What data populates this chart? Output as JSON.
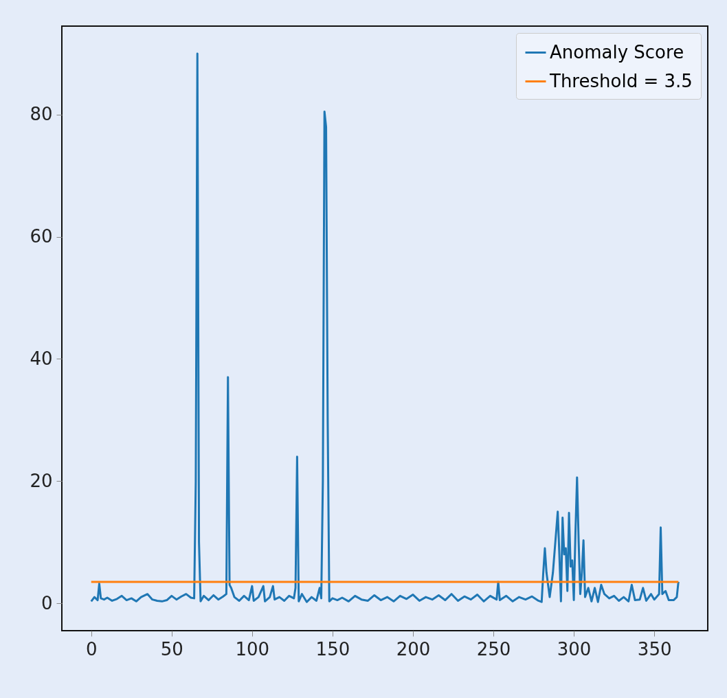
{
  "chart_data": {
    "type": "line",
    "xlim": [
      -18.25,
      383.25
    ],
    "ylim": [
      -4.5,
      94.5
    ],
    "xticks": [
      0,
      50,
      100,
      150,
      200,
      250,
      300,
      350
    ],
    "yticks": [
      0,
      20,
      40,
      60,
      80
    ],
    "grid": false,
    "legend": "top right",
    "series": [
      {
        "name": "Anomaly Score",
        "color": "#1f77b4",
        "x": [
          0,
          2,
          4,
          5,
          6,
          8,
          10,
          13,
          16,
          19,
          22,
          25,
          28,
          31,
          35,
          38,
          41,
          44,
          47,
          50,
          53,
          56,
          59,
          62,
          64,
          65,
          66,
          67,
          68,
          70,
          73,
          76,
          79,
          82,
          84,
          85,
          86,
          87,
          89,
          92,
          95,
          98,
          100,
          101,
          104,
          107,
          108,
          111,
          113,
          114,
          117,
          120,
          123,
          126,
          127,
          128,
          129,
          131,
          134,
          137,
          140,
          142,
          143,
          144,
          145,
          146,
          147,
          148,
          150,
          153,
          156,
          160,
          164,
          168,
          172,
          176,
          180,
          184,
          188,
          192,
          196,
          200,
          204,
          208,
          212,
          216,
          220,
          224,
          228,
          232,
          236,
          240,
          244,
          248,
          252,
          253,
          254,
          258,
          262,
          266,
          270,
          274,
          278,
          280,
          281,
          282,
          283,
          285,
          287,
          290,
          291,
          292,
          293,
          294,
          295,
          296,
          297,
          298,
          299,
          300,
          301,
          302,
          303,
          304,
          305,
          306,
          307,
          309,
          311,
          313,
          315,
          317,
          319,
          322,
          325,
          328,
          331,
          334,
          336,
          338,
          341,
          343,
          345,
          348,
          350,
          353,
          354,
          355,
          357,
          359,
          362,
          364,
          365
        ],
        "values": [
          0.3,
          1.0,
          0.5,
          3.2,
          0.8,
          0.6,
          0.9,
          0.4,
          0.7,
          1.2,
          0.5,
          0.8,
          0.3,
          1.0,
          1.5,
          0.6,
          0.4,
          0.3,
          0.5,
          1.2,
          0.6,
          1.1,
          1.5,
          0.9,
          0.8,
          20,
          90,
          10,
          0.3,
          1.2,
          0.5,
          1.3,
          0.6,
          1.1,
          1.5,
          37,
          3,
          2.5,
          1.0,
          0.4,
          1.2,
          0.5,
          2.8,
          0.4,
          1.0,
          2.8,
          0.3,
          1.0,
          2.8,
          0.6,
          1.0,
          0.4,
          1.2,
          0.8,
          2.5,
          24,
          0.3,
          1.5,
          0.2,
          1.0,
          0.4,
          2.5,
          0.8,
          20,
          80.5,
          78,
          30,
          0.3,
          0.8,
          0.5,
          0.9,
          0.3,
          1.2,
          0.6,
          0.4,
          1.3,
          0.5,
          1.0,
          0.3,
          1.2,
          0.7,
          1.4,
          0.4,
          1.0,
          0.6,
          1.3,
          0.5,
          1.5,
          0.4,
          1.1,
          0.6,
          1.4,
          0.3,
          1.2,
          0.6,
          3.5,
          0.5,
          1.2,
          0.3,
          1.0,
          0.6,
          1.1,
          0.4,
          0.2,
          5,
          9,
          5,
          1,
          5,
          15,
          8,
          0.3,
          14,
          8,
          9,
          2,
          14.8,
          6,
          7,
          0.5,
          11.5,
          20.6,
          10,
          1.5,
          5,
          10.3,
          1,
          2.5,
          0.3,
          2.5,
          0.2,
          3,
          1.5,
          0.8,
          1.2,
          0.4,
          1.0,
          0.3,
          3.0,
          0.5,
          0.6,
          2.5,
          0.4,
          1.5,
          0.6,
          1.5,
          12.4,
          1.5,
          2,
          0.5,
          0.5,
          1,
          3.5
        ]
      },
      {
        "name": "Threshold = 3.5",
        "color": "#ff7f0e",
        "x": [
          0,
          365
        ],
        "values": [
          3.5,
          3.5
        ]
      }
    ]
  }
}
